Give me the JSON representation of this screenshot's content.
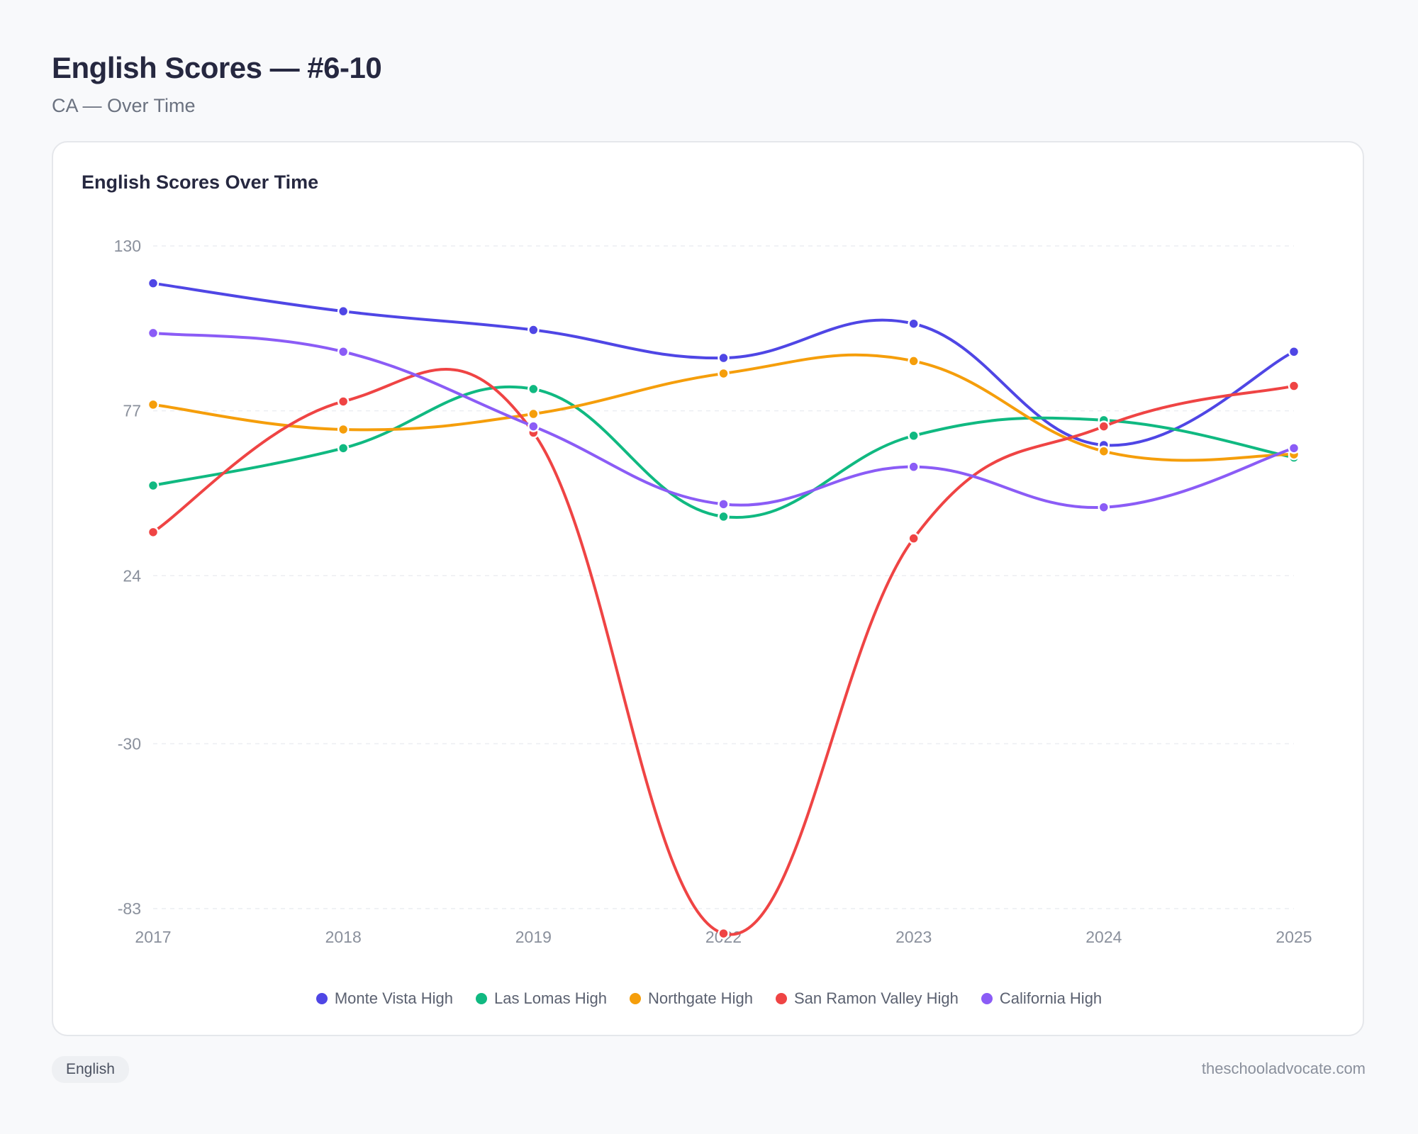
{
  "header": {
    "title": "English Scores — #6-10",
    "subtitle": "CA — Over Time"
  },
  "footer": {
    "tag": "English",
    "site": "theschooladvocate.com"
  },
  "chart_data": {
    "type": "line",
    "title": "English Scores Over Time",
    "xlabel": "",
    "ylabel": "",
    "categories": [
      "2017",
      "2018",
      "2019",
      "2022",
      "2023",
      "2024",
      "2025"
    ],
    "ylim": [
      -83,
      130
    ],
    "yticks": [
      130,
      77,
      24,
      -30,
      -83
    ],
    "grid": true,
    "legend_position": "bottom",
    "series": [
      {
        "name": "Monte Vista High",
        "color": "#4f46e5",
        "values": [
          118,
          109,
          103,
          94,
          105,
          66,
          96
        ]
      },
      {
        "name": "Las Lomas High",
        "color": "#10b981",
        "values": [
          53,
          65,
          84,
          43,
          69,
          74,
          62
        ]
      },
      {
        "name": "Northgate High",
        "color": "#f59e0b",
        "values": [
          79,
          71,
          76,
          89,
          93,
          64,
          63
        ]
      },
      {
        "name": "San Ramon Valley High",
        "color": "#ef4444",
        "values": [
          38,
          80,
          70,
          -91,
          36,
          72,
          85
        ]
      },
      {
        "name": "California High",
        "color": "#8b5cf6",
        "values": [
          102,
          96,
          72,
          47,
          59,
          46,
          65
        ]
      }
    ]
  }
}
